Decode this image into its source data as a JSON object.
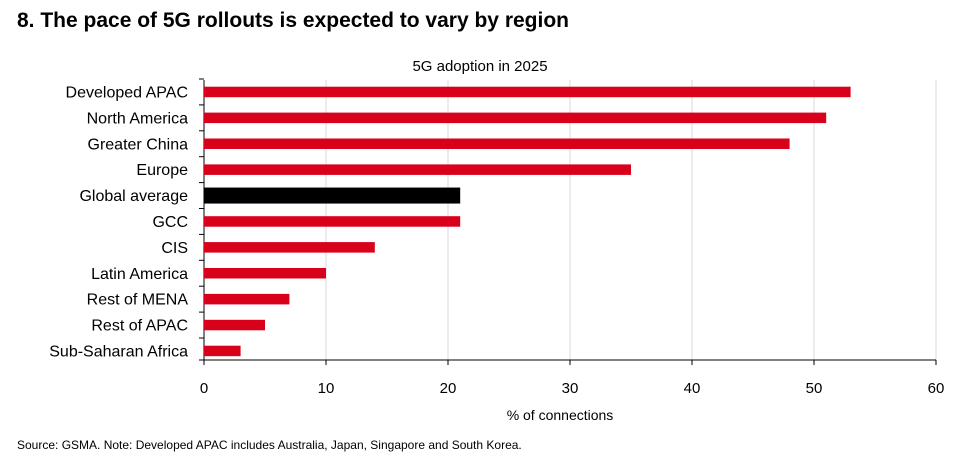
{
  "page": {
    "title": "8. The pace of 5G rollouts is expected to vary by region",
    "source": "Source: GSMA. Note: Developed APAC includes Australia, Japan, Singapore and South Korea."
  },
  "chart_data": {
    "type": "bar",
    "orientation": "horizontal",
    "title": "5G adoption  in 2025",
    "xlabel": "% of connections",
    "ylabel": "",
    "categories": [
      "Developed APAC",
      "North America",
      "Greater China",
      "Europe",
      "Global average",
      "GCC",
      "CIS",
      "Latin America",
      "Rest of MENA",
      "Rest of APAC",
      "Sub-Saharan Africa"
    ],
    "values": [
      53,
      51,
      48,
      35,
      21,
      21,
      14,
      10,
      7,
      5,
      3
    ],
    "xlim": [
      0,
      60
    ],
    "xticks": [
      "0",
      "10",
      "20",
      "30",
      "40",
      "50",
      "60"
    ],
    "grid": true,
    "legend": "none",
    "colors": {
      "bar": "#D9001B",
      "highlight": "#000000",
      "highlight_category": "Global average",
      "grid": "#D9D9D9"
    }
  }
}
